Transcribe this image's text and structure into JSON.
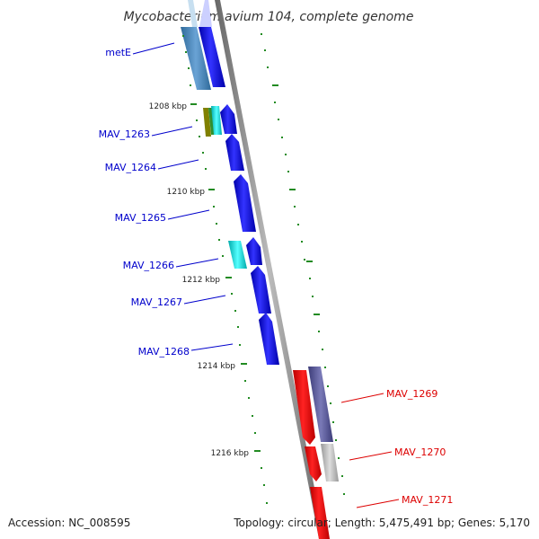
{
  "title": "Mycobacterium avium 104, complete genome",
  "footer": {
    "accession": "Accession: NC_008595",
    "topology": "Topology: circular; Length: 5,475,491 bp; Genes: 5,170"
  },
  "ticks": [
    "1208 kbp",
    "1210 kbp",
    "1212 kbp",
    "1214 kbp",
    "1216 kbp"
  ],
  "genes_forward": [
    "metE",
    "MAV_1263",
    "MAV_1264",
    "MAV_1265",
    "MAV_1266",
    "MAV_1267",
    "MAV_1268"
  ],
  "genes_reverse": [
    "MAV_1269",
    "MAV_1270",
    "MAV_1271"
  ],
  "colors": {
    "forward_label": "#0000cc",
    "reverse_label": "#dd0000",
    "forward_gene": "#0000ee",
    "reverse_gene": "#ee0000",
    "cog_steelblue": "#4682b4",
    "cog_cyan": "#00dddd",
    "cog_olive": "#808000",
    "cog_slate": "#55558f",
    "cog_gray": "#aaaaaa",
    "backbone": "#888888",
    "tick": "#228b22"
  }
}
